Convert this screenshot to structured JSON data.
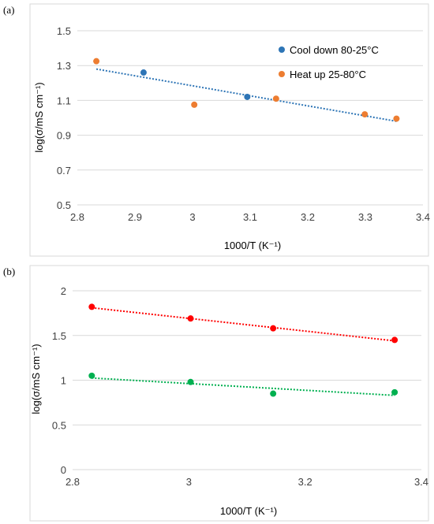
{
  "chart_data": [
    {
      "panel_label": "(a)",
      "type": "scatter",
      "xlabel": "1000/T (K⁻¹)",
      "ylabel": "log(σ/mS cm⁻¹)",
      "xlim": [
        2.8,
        3.4
      ],
      "ylim": [
        0.5,
        1.5
      ],
      "xticks": [
        "2.8",
        "2.9",
        "3",
        "3.1",
        "3.2",
        "3.3",
        "3.4"
      ],
      "yticks": [
        "0.5",
        "0.7",
        "0.9",
        "1.1",
        "1.3",
        "1.5"
      ],
      "grid": "horizontal",
      "legend_position": "top-right",
      "series": [
        {
          "name": "Cool down 80-25°C",
          "color": "#2e75b6",
          "x": [
            2.915,
            3.095
          ],
          "y": [
            1.26,
            1.12
          ]
        },
        {
          "name": "Heat up 25-80°C",
          "color": "#ed7d31",
          "x": [
            2.833,
            3.003,
            3.145,
            3.299,
            3.354
          ],
          "y": [
            1.325,
            1.075,
            1.11,
            1.02,
            0.995
          ]
        }
      ],
      "trendlines": [
        {
          "color": "#2e75b6",
          "x": [
            2.833,
            3.354
          ],
          "y": [
            1.28,
            0.98
          ]
        }
      ]
    },
    {
      "panel_label": "(b)",
      "type": "scatter",
      "xlabel": "1000/T (K⁻¹)",
      "ylabel": "log(σ/mS cm⁻¹)",
      "xlim": [
        2.8,
        3.4
      ],
      "ylim": [
        0,
        2
      ],
      "xticks": [
        "2.8",
        "3",
        "3.2",
        "3.4"
      ],
      "yticks": [
        "0",
        "0.5",
        "1",
        "1.5",
        "2"
      ],
      "grid": "horizontal",
      "series": [
        {
          "color": "#ff0000",
          "x": [
            2.833,
            3.003,
            3.145,
            3.354
          ],
          "y": [
            1.82,
            1.69,
            1.58,
            1.45
          ]
        },
        {
          "color": "#00b050",
          "x": [
            2.833,
            3.003,
            3.145,
            3.354
          ],
          "y": [
            1.05,
            0.98,
            0.85,
            0.865
          ]
        }
      ],
      "trendlines": [
        {
          "color": "#ff0000",
          "x": [
            2.833,
            3.354
          ],
          "y": [
            1.81,
            1.44
          ]
        },
        {
          "color": "#00b050",
          "x": [
            2.833,
            3.354
          ],
          "y": [
            1.025,
            0.83
          ]
        }
      ]
    }
  ]
}
